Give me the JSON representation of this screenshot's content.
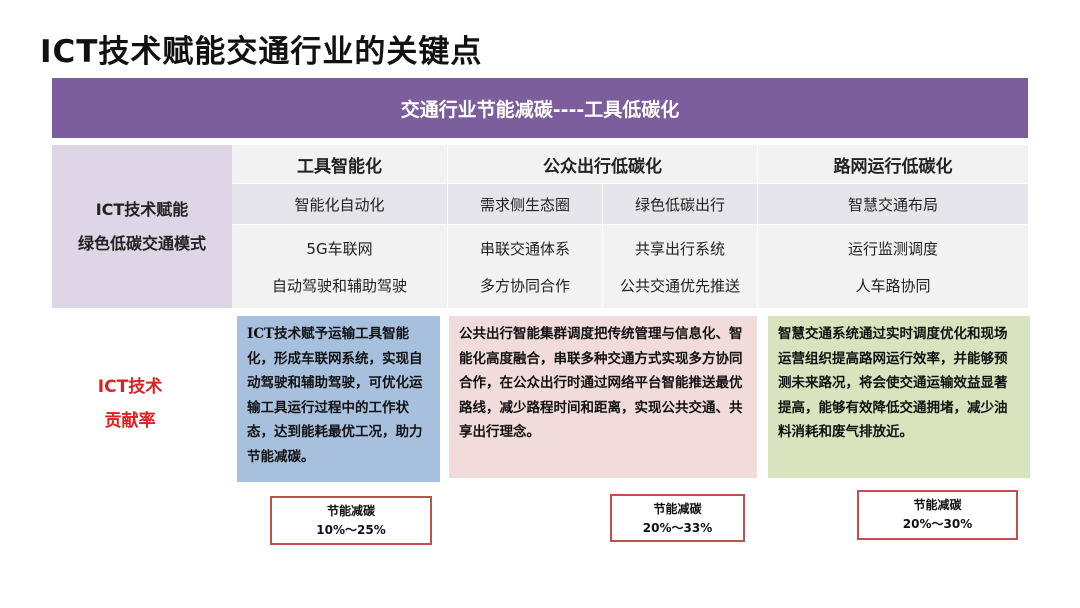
{
  "title": "ICT技术赋能交通行业的关键点",
  "banner": "交通行业节能减碳----工具低碳化",
  "table": {
    "left_label_1": "ICT技术赋能",
    "left_label_2": "绿色低碳交通模式",
    "headers": [
      "工具智能化",
      "公众出行低碳化",
      "路网运行低碳化"
    ],
    "row1": [
      "智能化自动化",
      "需求侧生态圈",
      "绿色低碳出行",
      "智慧交通布局"
    ],
    "row2a": [
      "5G车联网",
      "串联交通体系",
      "共享出行系统",
      "运行监测调度"
    ],
    "row2b": [
      "自动驾驶和辅助驾驶",
      "多方协同合作",
      "公共交通优先推送",
      "人车路协同"
    ]
  },
  "contribution_label_1": "ICT技术",
  "contribution_label_2": "贡献率",
  "descriptions": [
    "ICT技术赋予运输工具智能化，形成车联网系统，实现自动驾驶和辅助驾驶，可优化运输工具运行过程中的工作状态，达到能耗最优工况，助力节能减碳。",
    "公共出行智能集群调度把传统管理与信息化、智能化高度融合，串联多种交通方式实现多方协同合作，在公众出行时通过网络平台智能推送最优路线，减少路程时间和距离，实现公共交通、共享出行理念。",
    "智慧交通系统通过实时调度优化和现场运营组织提高路网运行效率，并能够预测未来路况，将会使交通运输效益显著提高，能够有效降低交通拥堵，减少油料消耗和废气排放近。"
  ],
  "rates": [
    {
      "label": "节能减碳",
      "value": "10%～25%"
    },
    {
      "label": "节能减碳",
      "value": "20%～33%"
    },
    {
      "label": "节能减碳",
      "value": "20%～30%"
    }
  ],
  "colors": {
    "banner": "#7d5e9c",
    "blue": "#a6c0de",
    "pink": "#f2dcdb",
    "green": "#d7e4bd",
    "rate_border": "#c0504d",
    "red_text": "#e02020"
  }
}
